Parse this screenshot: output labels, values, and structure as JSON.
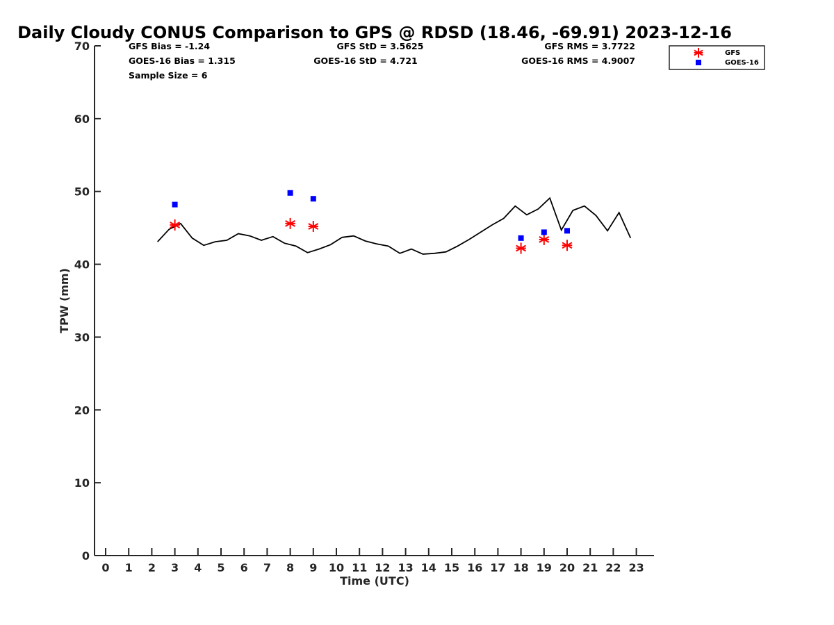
{
  "chart_data": {
    "type": "scatter",
    "title": "Daily Cloudy CONUS Comparison to GPS @ RDSD (18.46, -69.91) 2023-12-16",
    "xlabel": "Time (UTC)",
    "ylabel": "TPW (mm)",
    "xlim": [
      -0.5,
      23.7
    ],
    "ylim": [
      0,
      70
    ],
    "xticks": [
      0,
      1,
      2,
      3,
      4,
      5,
      6,
      7,
      8,
      9,
      10,
      11,
      12,
      13,
      14,
      15,
      16,
      17,
      18,
      19,
      20,
      21,
      22,
      23
    ],
    "yticks": [
      0,
      10,
      20,
      30,
      40,
      50,
      60,
      70
    ],
    "stats": {
      "gfs_bias": "GFS Bias = -1.24",
      "goes_bias": "GOES-16 Bias = 1.315",
      "sample_size": "Sample Size = 6",
      "gfs_std": "GFS StD = 3.5625",
      "goes_std": "GOES-16 StD = 4.721",
      "gfs_rms": "GFS RMS = 3.7722",
      "goes_rms": "GOES-16 RMS = 4.9007"
    },
    "legend": {
      "position": "top-right",
      "entries": [
        "GFS",
        "GOES-16"
      ]
    },
    "gps_line": {
      "name": "GPS",
      "color": "#000000",
      "x": [
        2.25,
        2.75,
        3.25,
        3.75,
        4.25,
        4.75,
        5.25,
        5.75,
        6.25,
        6.75,
        7.25,
        7.75,
        8.25,
        8.75,
        9.25,
        9.75,
        10.25,
        10.75,
        11.25,
        11.75,
        12.25,
        12.75,
        13.25,
        13.75,
        14.25,
        14.75,
        15.25,
        15.75,
        16.25,
        16.75,
        17.25,
        17.75,
        18.25,
        18.75,
        19.25,
        19.75,
        20.25,
        20.75,
        21.25,
        21.75,
        22.25,
        22.75
      ],
      "y": [
        43.1,
        44.8,
        45.6,
        43.6,
        42.6,
        43.1,
        43.3,
        44.2,
        43.9,
        43.3,
        43.8,
        42.9,
        42.5,
        41.6,
        42.1,
        42.7,
        43.7,
        43.9,
        43.2,
        42.8,
        42.5,
        41.5,
        42.1,
        41.4,
        41.5,
        41.7,
        42.5,
        43.4,
        44.4,
        45.4,
        46.3,
        48.0,
        46.8,
        47.6,
        49.1,
        44.7,
        47.4,
        48.0,
        46.7,
        44.6,
        47.1,
        43.6
      ]
    },
    "series": [
      {
        "name": "GFS",
        "marker": "asterisk",
        "color": "#ff0000",
        "x": [
          3,
          8,
          9,
          18,
          19,
          20
        ],
        "y": [
          45.4,
          45.6,
          45.2,
          42.2,
          43.4,
          42.6
        ]
      },
      {
        "name": "GOES-16",
        "marker": "square",
        "color": "#0000ff",
        "x": [
          3,
          8,
          9,
          18,
          19,
          20
        ],
        "y": [
          48.2,
          49.8,
          49.0,
          43.6,
          44.4,
          44.6
        ]
      }
    ]
  }
}
